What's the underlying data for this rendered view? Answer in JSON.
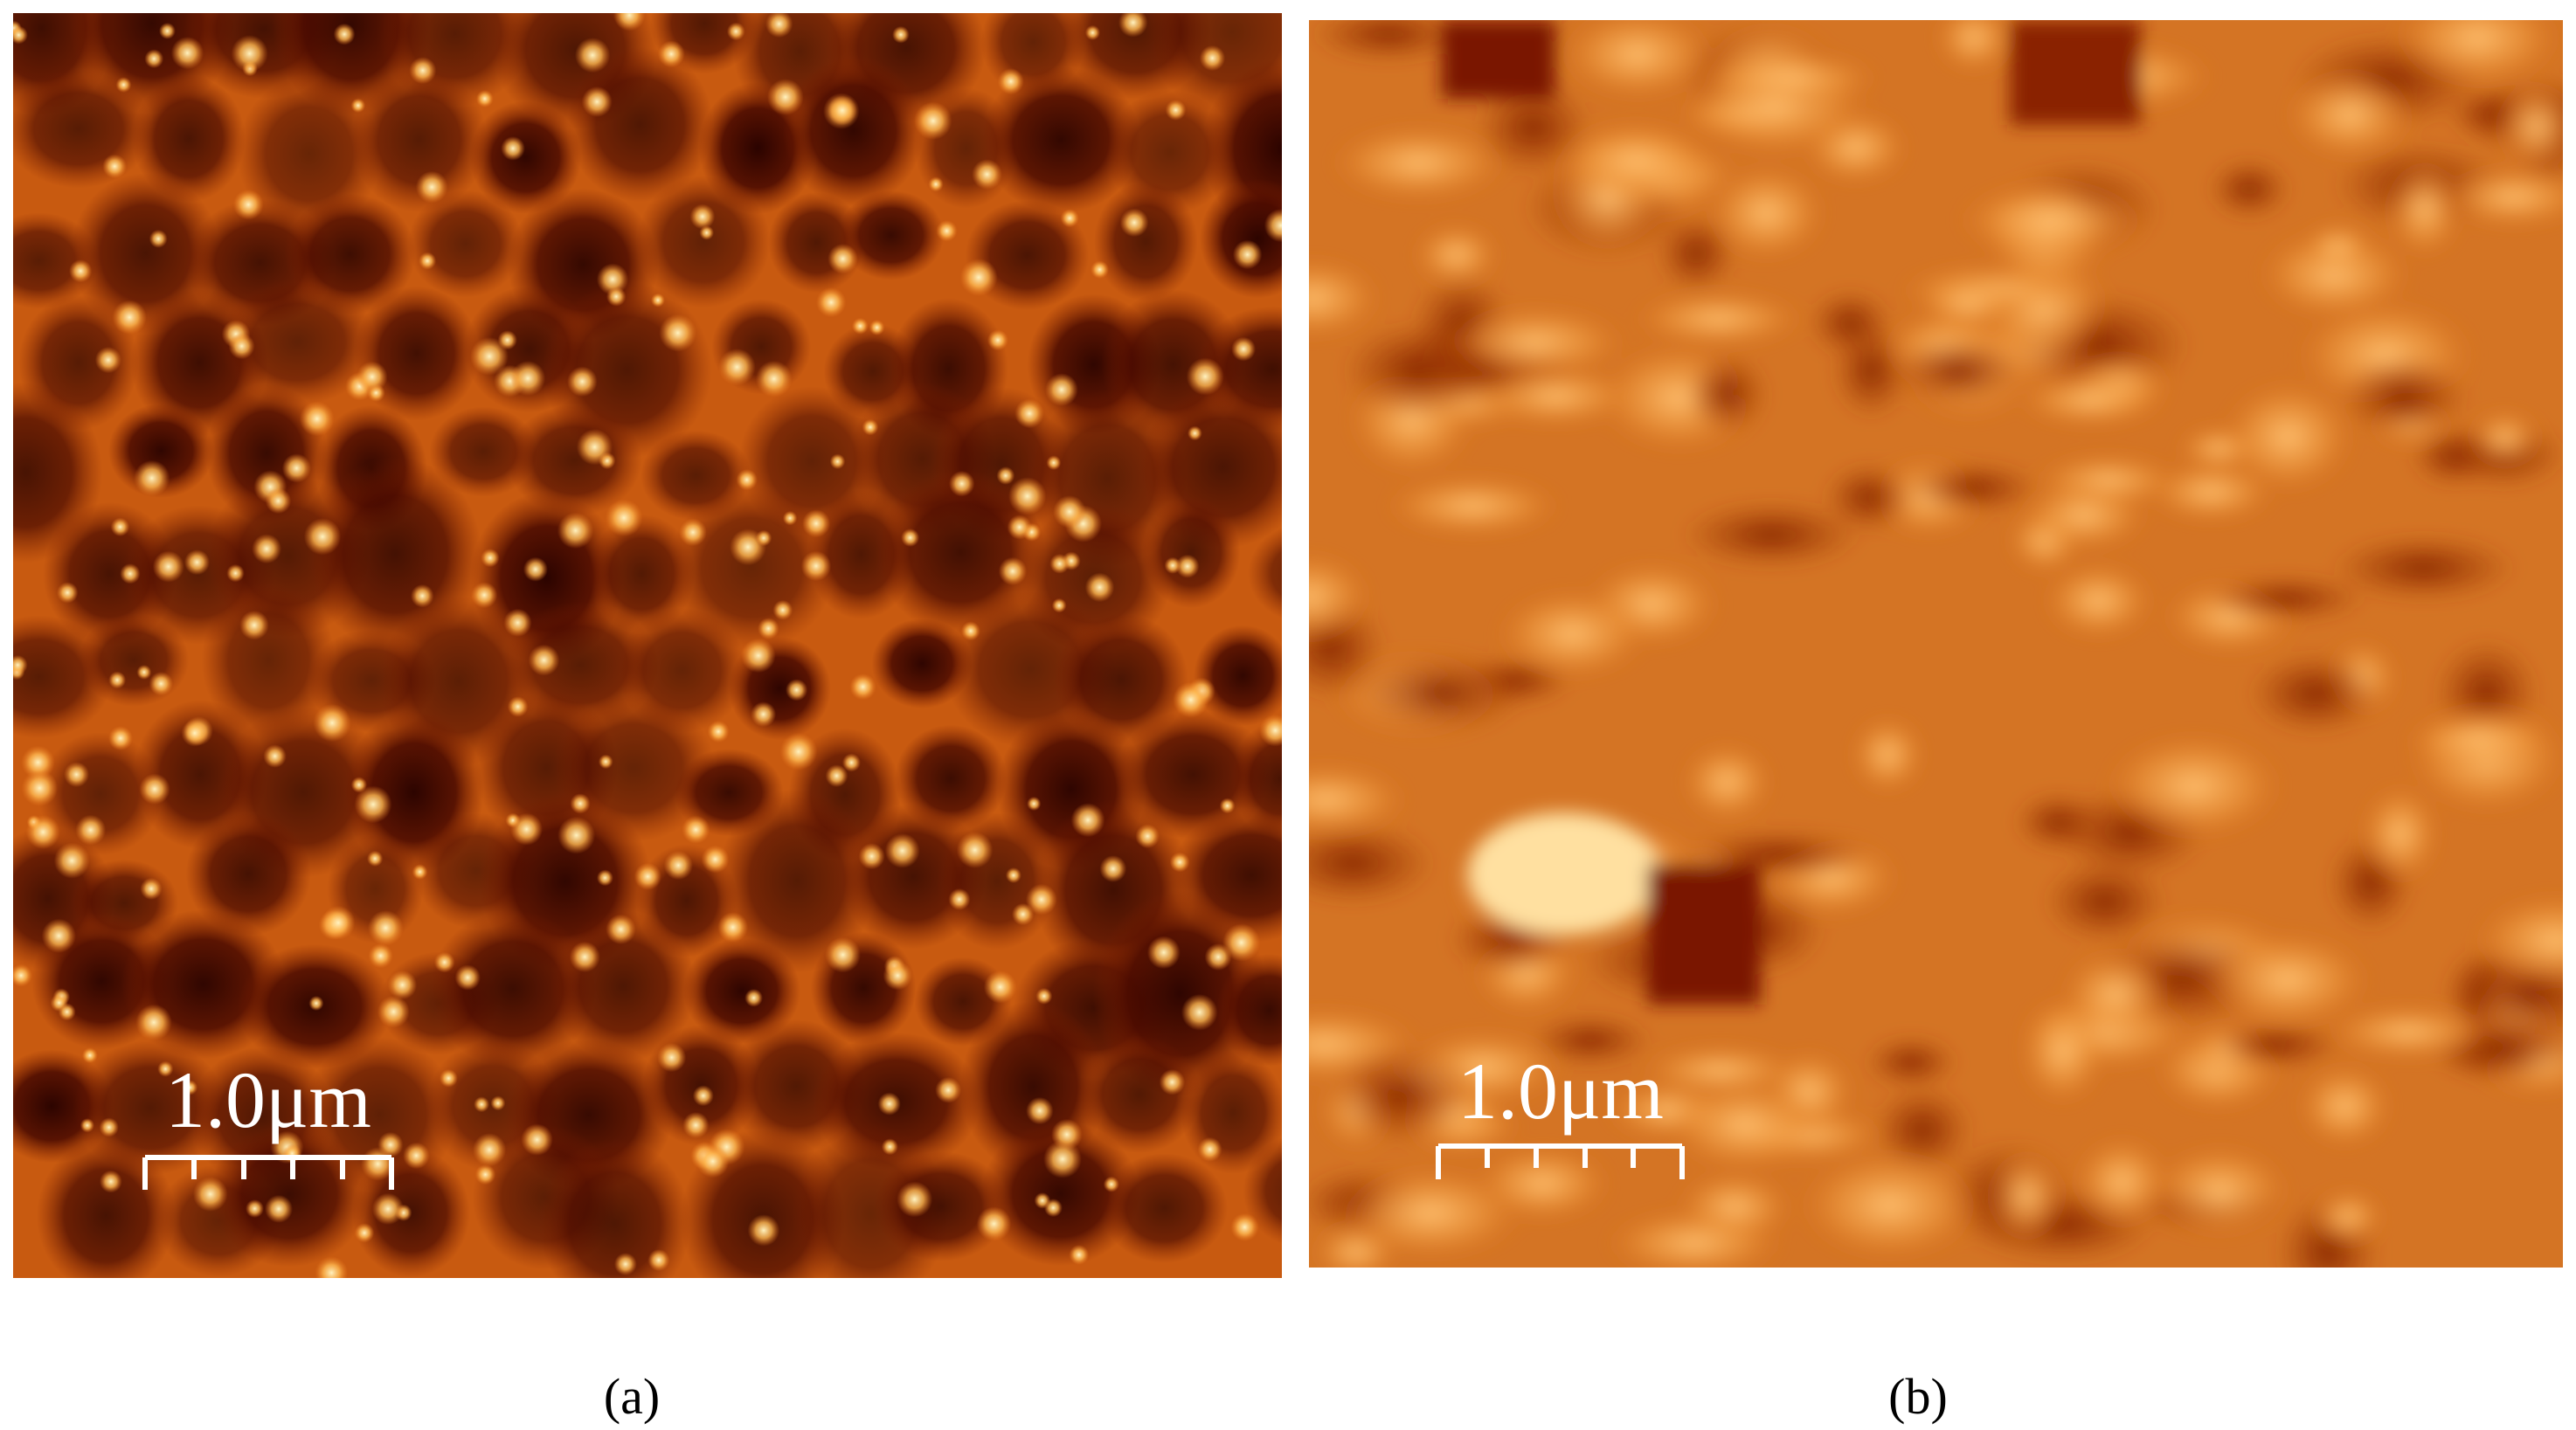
{
  "panels": [
    {
      "label": "(a)",
      "scale_bar": "1.0μm"
    },
    {
      "label": "(b)",
      "scale_bar": "1.0μm"
    }
  ]
}
